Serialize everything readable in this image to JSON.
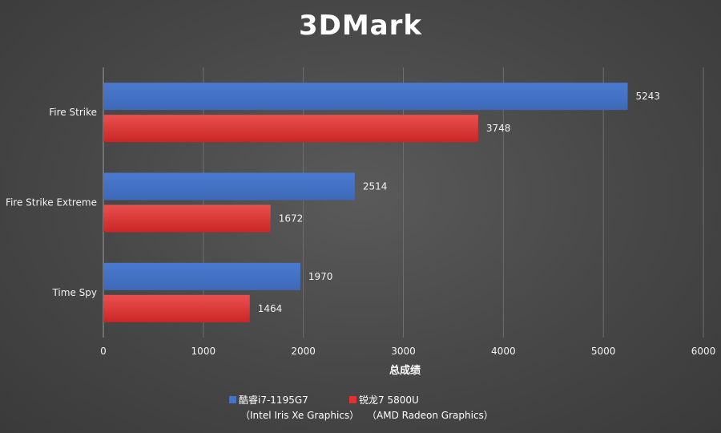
{
  "chart_data": {
    "type": "bar",
    "orientation": "horizontal",
    "title": "3DMark",
    "xlabel": "总成绩",
    "ylabel": "",
    "categories": [
      "Fire Strike",
      "Fire Strike Extreme",
      "Time Spy"
    ],
    "series": [
      {
        "name": "酷睿i7-1195G7",
        "subname": "（Intel Iris Xe Graphics）",
        "color": "#4472c4",
        "values": [
          5243,
          2514,
          1970
        ]
      },
      {
        "name": "锐龙7 5800U",
        "subname": "（AMD Radeon Graphics）",
        "color": "#e03232",
        "values": [
          3748,
          1672,
          1464
        ]
      }
    ],
    "xlim": [
      0,
      6000
    ],
    "xticks": [
      0,
      1000,
      2000,
      3000,
      4000,
      5000,
      6000
    ],
    "grid": true,
    "legend": "bottom",
    "data_labels": true
  }
}
